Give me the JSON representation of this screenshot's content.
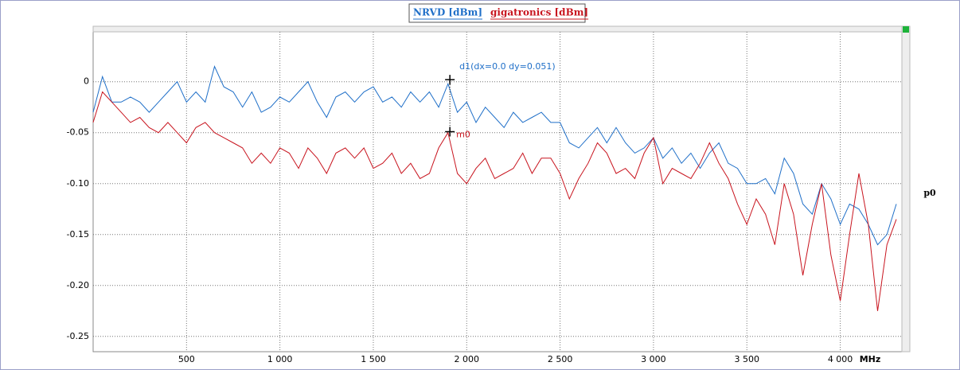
{
  "chart_data": {
    "type": "line",
    "legend": "top",
    "grid": true,
    "x_unit": "MHz",
    "right_label": "p0",
    "xlim": [
      0,
      4330
    ],
    "ylim": [
      -0.265,
      0.049
    ],
    "xticks": [
      500,
      {
        "value": 1000,
        "label": "1 000"
      },
      {
        "value": 1500,
        "label": "1 500"
      },
      {
        "value": 2000,
        "label": "2 000"
      },
      {
        "value": 2500,
        "label": "2 500"
      },
      {
        "value": 3000,
        "label": "3 000"
      },
      {
        "value": 3500,
        "label": "3 500"
      },
      {
        "value": 4000,
        "label": "4 000"
      }
    ],
    "yticks": [
      0,
      -0.05,
      {
        "value": -0.1,
        "label": "-0.10"
      },
      -0.15,
      {
        "value": -0.2,
        "label": "-0.20"
      },
      -0.25
    ],
    "x": [
      0,
      50,
      100,
      150,
      200,
      250,
      300,
      350,
      400,
      450,
      500,
      550,
      600,
      650,
      700,
      750,
      800,
      850,
      900,
      950,
      1000,
      1050,
      1100,
      1150,
      1200,
      1250,
      1300,
      1350,
      1400,
      1450,
      1500,
      1550,
      1600,
      1650,
      1700,
      1750,
      1800,
      1850,
      1900,
      1950,
      2000,
      2050,
      2100,
      2150,
      2200,
      2250,
      2300,
      2350,
      2400,
      2450,
      2500,
      2550,
      2600,
      2650,
      2700,
      2750,
      2800,
      2850,
      2900,
      2950,
      3000,
      3050,
      3100,
      3150,
      3200,
      3250,
      3300,
      3350,
      3400,
      3450,
      3500,
      3550,
      3600,
      3650,
      3700,
      3750,
      3800,
      3850,
      3900,
      3950,
      4000,
      4050,
      4100,
      4150,
      4200,
      4250,
      4300
    ],
    "series": [
      {
        "name": "NRVD [dBm]",
        "color": "#1f6fc8",
        "values": [
          -0.03,
          0.005,
          -0.02,
          -0.02,
          -0.015,
          -0.02,
          -0.03,
          -0.02,
          -0.01,
          0.0,
          -0.02,
          -0.01,
          -0.02,
          0.015,
          -0.005,
          -0.01,
          -0.025,
          -0.01,
          -0.03,
          -0.025,
          -0.015,
          -0.02,
          -0.01,
          0.0,
          -0.02,
          -0.035,
          -0.015,
          -0.01,
          -0.02,
          -0.01,
          -0.005,
          -0.02,
          -0.015,
          -0.025,
          -0.01,
          -0.02,
          -0.01,
          -0.025,
          -0.002,
          -0.03,
          -0.02,
          -0.04,
          -0.025,
          -0.035,
          -0.045,
          -0.03,
          -0.04,
          -0.035,
          -0.03,
          -0.04,
          -0.04,
          -0.06,
          -0.065,
          -0.055,
          -0.045,
          -0.06,
          -0.045,
          -0.06,
          -0.07,
          -0.065,
          -0.055,
          -0.075,
          -0.065,
          -0.08,
          -0.07,
          -0.085,
          -0.07,
          -0.06,
          -0.08,
          -0.085,
          -0.1,
          -0.1,
          -0.095,
          -0.11,
          -0.075,
          -0.09,
          -0.12,
          -0.13,
          -0.1,
          -0.115,
          -0.14,
          -0.12,
          -0.125,
          -0.14,
          -0.16,
          -0.15,
          -0.12
        ]
      },
      {
        "name": "gigatronics [dBm]",
        "color": "#c8141e",
        "values": [
          -0.04,
          -0.01,
          -0.02,
          -0.03,
          -0.04,
          -0.035,
          -0.045,
          -0.05,
          -0.04,
          -0.05,
          -0.06,
          -0.045,
          -0.04,
          -0.05,
          -0.055,
          -0.06,
          -0.065,
          -0.08,
          -0.07,
          -0.08,
          -0.065,
          -0.07,
          -0.085,
          -0.065,
          -0.075,
          -0.09,
          -0.07,
          -0.065,
          -0.075,
          -0.065,
          -0.085,
          -0.08,
          -0.07,
          -0.09,
          -0.08,
          -0.095,
          -0.09,
          -0.065,
          -0.05,
          -0.09,
          -0.1,
          -0.085,
          -0.075,
          -0.095,
          -0.09,
          -0.085,
          -0.07,
          -0.09,
          -0.075,
          -0.075,
          -0.09,
          -0.115,
          -0.095,
          -0.08,
          -0.06,
          -0.07,
          -0.09,
          -0.085,
          -0.095,
          -0.07,
          -0.055,
          -0.1,
          -0.085,
          -0.09,
          -0.095,
          -0.08,
          -0.06,
          -0.08,
          -0.095,
          -0.12,
          -0.14,
          -0.115,
          -0.13,
          -0.16,
          -0.1,
          -0.13,
          -0.19,
          -0.14,
          -0.1,
          -0.17,
          -0.215,
          -0.15,
          -0.09,
          -0.14,
          -0.225,
          -0.16,
          -0.135
        ]
      }
    ],
    "annotations": [
      {
        "text": "d1(dx=0.0 dy=0.051)",
        "x": 1910,
        "y": 0.002,
        "color": "#1f6fc8"
      },
      {
        "text": "m0",
        "x": 1910,
        "y": -0.049,
        "color": "#c8141e"
      }
    ]
  }
}
